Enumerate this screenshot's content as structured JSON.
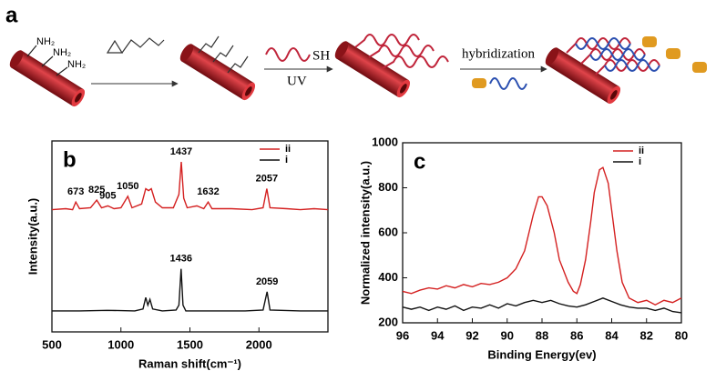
{
  "scheme": {
    "label": "a",
    "amine_labels": [
      "NH₂",
      "NH₂",
      "NH₂"
    ],
    "thiol_label": "SH",
    "step_2_label": "UV",
    "step_3_label": "hybridization"
  },
  "chart_data": [
    {
      "type": "line",
      "panel_label": "b",
      "x_label": "Raman shift(cm⁻¹)",
      "y_label": "Intensity(a.u.)",
      "xlim": [
        500,
        2500
      ],
      "xticks": [
        500,
        1000,
        1500,
        2000
      ],
      "ylim": [
        0,
        100
      ],
      "yticks": [],
      "legend": "upper right",
      "series": [
        {
          "name": "ii",
          "color": "#d42020",
          "x": [
            500,
            600,
            650,
            673,
            700,
            780,
            825,
            860,
            905,
            950,
            1000,
            1050,
            1080,
            1150,
            1180,
            1200,
            1220,
            1250,
            1300,
            1380,
            1420,
            1437,
            1455,
            1480,
            1550,
            1600,
            1632,
            1660,
            1800,
            1950,
            2030,
            2057,
            2080,
            2200,
            2300,
            2400,
            2500
          ],
          "values": [
            64,
            64.5,
            64,
            68,
            64.5,
            65,
            69,
            65,
            66,
            64.5,
            65,
            71,
            65,
            67,
            75,
            74,
            75,
            68,
            65,
            65,
            72,
            89,
            70,
            65,
            66,
            64.5,
            68,
            64.5,
            64.5,
            64,
            65,
            75,
            65,
            64.5,
            64,
            64.5,
            64
          ],
          "peak_labels": [
            "673",
            "825",
            "905",
            "1050",
            "1437",
            "1632",
            "2057"
          ]
        },
        {
          "name": "i",
          "color": "#111111",
          "x": [
            500,
            700,
            900,
            1100,
            1160,
            1180,
            1195,
            1210,
            1230,
            1300,
            1400,
            1420,
            1436,
            1450,
            1470,
            1700,
            1900,
            2030,
            2059,
            2080,
            2300,
            2500
          ],
          "values": [
            11,
            11,
            11.3,
            11,
            12,
            18,
            14,
            17,
            12,
            11,
            11.5,
            14,
            33,
            14,
            11,
            11,
            11,
            11.5,
            21,
            11.5,
            11,
            11
          ],
          "peak_labels": [
            "1436",
            "2059"
          ]
        }
      ]
    },
    {
      "type": "line",
      "panel_label": "c",
      "x_label": "Binding Energy(ev)",
      "y_label": "Normalized intensity(a.u.)",
      "xlim": [
        96,
        80
      ],
      "xticks": [
        96,
        94,
        92,
        90,
        88,
        86,
        84,
        82,
        80
      ],
      "ylim": [
        200,
        1000
      ],
      "yticks": [
        200,
        400,
        600,
        800,
        1000
      ],
      "legend": "upper right",
      "series": [
        {
          "name": "ii",
          "color": "#d42020",
          "x": [
            96,
            95.5,
            95,
            94.5,
            94,
            93.5,
            93,
            92.5,
            92,
            91.5,
            91,
            90.5,
            90,
            89.5,
            89,
            88.5,
            88.2,
            88,
            87.7,
            87.3,
            87,
            86.5,
            86.2,
            86,
            85.8,
            85.5,
            85.2,
            85,
            84.7,
            84.5,
            84.2,
            84,
            83.7,
            83.4,
            83,
            82.5,
            82,
            81.5,
            81,
            80.5,
            80
          ],
          "values": [
            340,
            330,
            345,
            355,
            350,
            365,
            355,
            370,
            360,
            375,
            370,
            380,
            400,
            440,
            520,
            680,
            760,
            760,
            720,
            600,
            480,
            380,
            340,
            330,
            370,
            480,
            650,
            780,
            880,
            890,
            820,
            700,
            520,
            380,
            310,
            290,
            300,
            280,
            300,
            290,
            310
          ]
        },
        {
          "name": "i",
          "color": "#111111",
          "x": [
            96,
            95.5,
            95,
            94.5,
            94,
            93.5,
            93,
            92.5,
            92,
            91.5,
            91,
            90.5,
            90,
            89.5,
            89,
            88.5,
            88,
            87.5,
            87,
            86.5,
            86,
            85.5,
            85,
            84.5,
            84,
            83.5,
            83,
            82.5,
            82,
            81.5,
            81,
            80.5,
            80
          ],
          "values": [
            270,
            260,
            270,
            255,
            270,
            260,
            275,
            255,
            270,
            265,
            280,
            265,
            285,
            275,
            290,
            300,
            290,
            300,
            285,
            275,
            270,
            280,
            295,
            310,
            295,
            280,
            270,
            265,
            265,
            255,
            265,
            250,
            245
          ]
        }
      ]
    }
  ]
}
